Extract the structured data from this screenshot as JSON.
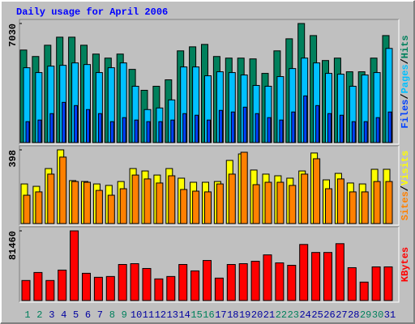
{
  "chart_data": [
    {
      "type": "bar",
      "title": "Daily usage for April 2006",
      "legend_separator": "/",
      "ylim": [
        0,
        7030
      ],
      "yticks": [
        7030
      ],
      "series": [
        {
          "name": "Hits",
          "color": "#00805c",
          "values": [
            5463,
            5082,
            5747,
            6222,
            6222,
            5747,
            5225,
            4987,
            5225,
            4322,
            3087,
            3325,
            3705,
            5415,
            5652,
            5795,
            5082,
            4987,
            4987,
            4940,
            4085,
            5415,
            6127,
            7030,
            6317,
            4845,
            4987,
            4180,
            4180,
            4987,
            6317
          ]
        },
        {
          "name": "Pages",
          "color": "#00c0ff",
          "values": [
            4418,
            4133,
            4513,
            4560,
            4703,
            4608,
            4133,
            4418,
            4703,
            3325,
            1948,
            2043,
            2518,
            4465,
            4465,
            3943,
            4180,
            4133,
            3990,
            3373,
            3325,
            3895,
            4370,
            4988,
            4703,
            4085,
            4038,
            3325,
            3990,
            4133,
            5558
          ]
        },
        {
          "name": "Files",
          "color": "#0040ff",
          "values": [
            1235,
            1330,
            1710,
            2375,
            2185,
            1948,
            1710,
            1235,
            1473,
            1330,
            1235,
            1235,
            1330,
            1710,
            1615,
            1330,
            1900,
            1805,
            2090,
            1710,
            1473,
            1330,
            1805,
            2755,
            2185,
            1710,
            1615,
            1235,
            1235,
            1473,
            1805
          ]
        }
      ]
    },
    {
      "type": "bar",
      "legend_separator": "/",
      "ylim": [
        0,
        398
      ],
      "yticks": [
        398
      ],
      "series": [
        {
          "name": "Visits",
          "color": "#ffff00",
          "values": [
            214,
            201,
            297,
            398,
            232,
            227,
            214,
            206,
            227,
            297,
            284,
            262,
            297,
            245,
            223,
            223,
            227,
            341,
            376,
            289,
            267,
            258,
            245,
            284,
            381,
            236,
            271,
            219,
            214,
            293,
            293
          ]
        },
        {
          "name": "Sites",
          "color": "#ff8000",
          "values": [
            153,
            171,
            267,
            359,
            227,
            223,
            179,
            153,
            188,
            262,
            241,
            219,
            258,
            184,
            175,
            171,
            214,
            267,
            385,
            210,
            223,
            223,
            206,
            267,
            350,
            188,
            241,
            171,
            171,
            227,
            227
          ]
        }
      ]
    },
    {
      "type": "bar",
      "ylim": [
        0,
        81460
      ],
      "yticks": [
        81460
      ],
      "categories": [
        "1",
        "2",
        "3",
        "4",
        "5",
        "6",
        "7",
        "8",
        "9",
        "10",
        "11",
        "12",
        "13",
        "14",
        "15",
        "16",
        "17",
        "18",
        "19",
        "20",
        "21",
        "22",
        "23",
        "24",
        "25",
        "26",
        "27",
        "28",
        "29",
        "30",
        "31"
      ],
      "category_colors": [
        "#00805c",
        "#00805c",
        "#0000a0",
        "#0000a0",
        "#0000a0",
        "#0000a0",
        "#0000a0",
        "#00805c",
        "#00805c",
        "#0000a0",
        "#0000a0",
        "#0000a0",
        "#0000a0",
        "#0000a0",
        "#00805c",
        "#00805c",
        "#0000a0",
        "#0000a0",
        "#0000a0",
        "#0000a0",
        "#0000a0",
        "#00805c",
        "#00805c",
        "#0000a0",
        "#0000a0",
        "#0000a0",
        "#0000a0",
        "#0000a0",
        "#00805c",
        "#00805c",
        "#0000a0"
      ],
      "series": [
        {
          "name": "KBytes",
          "color": "#ff0000",
          "values": [
            23408,
            32771,
            23408,
            35580,
            81460,
            31835,
            27153,
            28090,
            42134,
            43070,
            37452,
            25280,
            28090,
            42134,
            34643,
            46815,
            26216,
            42134,
            43070,
            45879,
            53369,
            44006,
            41197,
            65541,
            56178,
            56178,
            66477,
            38388,
            21535,
            39325,
            39325
          ]
        }
      ]
    }
  ]
}
